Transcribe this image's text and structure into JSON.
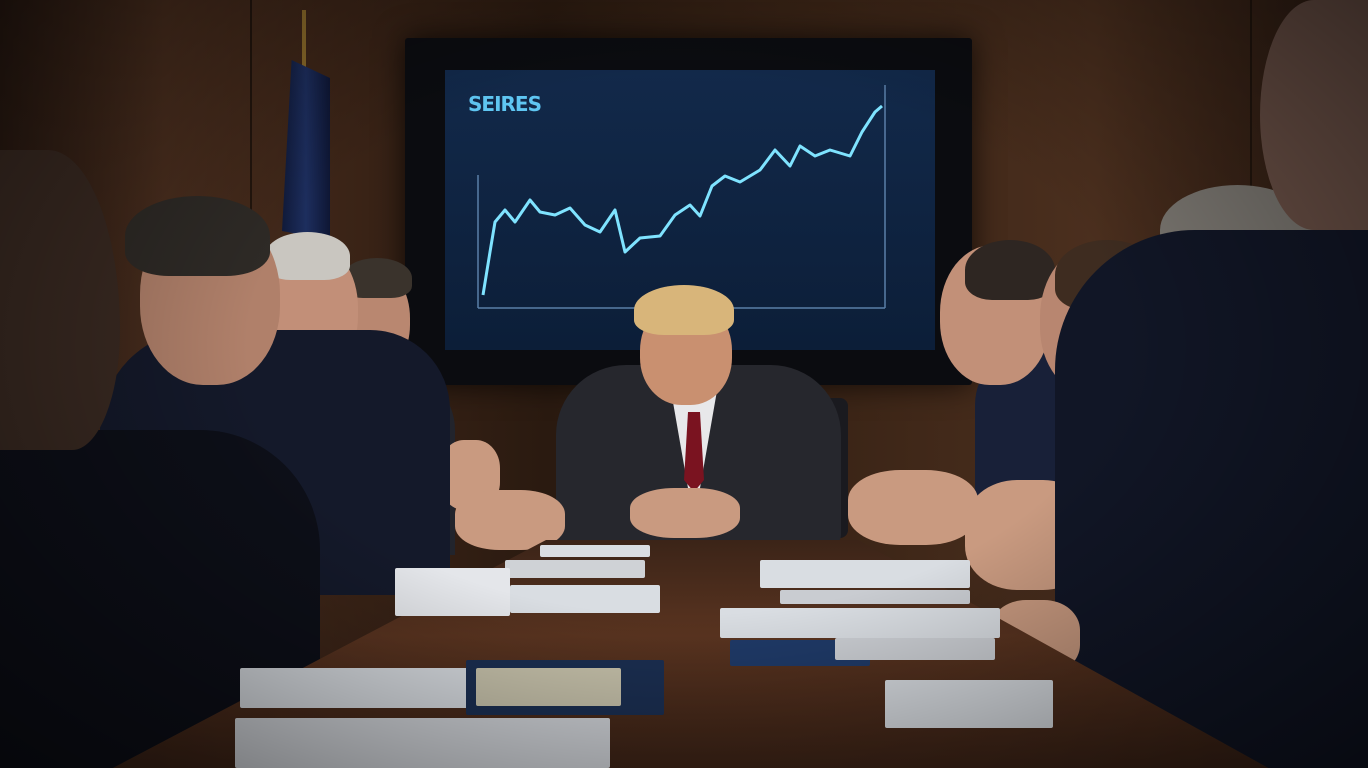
{
  "scene": {
    "description_free": true,
    "screen": {
      "title": "SEIRES",
      "line_color": "#7fe3ff",
      "background": "#0f2540"
    },
    "colors": {
      "wood_wall": "#3b2417",
      "table": "#5a3420",
      "suit": "#14192a"
    }
  }
}
